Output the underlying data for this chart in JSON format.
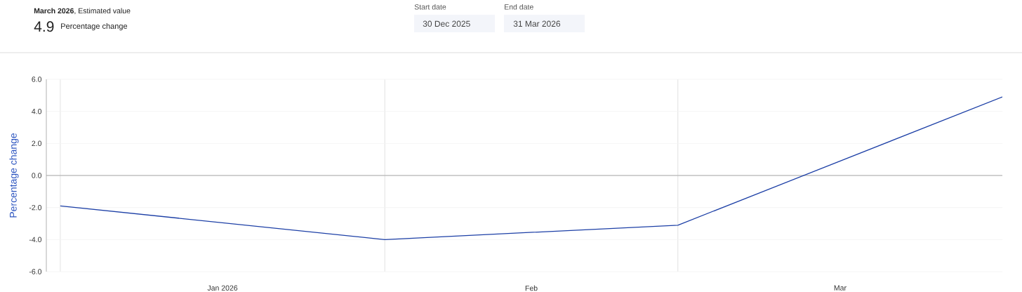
{
  "chart_data": {
    "type": "line",
    "title": "**March 2026**, Estimated value",
    "ylabel": "Percentage change",
    "annotations": [
      "4.9",
      "Percentage change",
      "Start date",
      "30 Dec 2025",
      "End date",
      "31 Mar 2026"
    ],
    "x": [
      "2026-01-01",
      "2026-02-01",
      "2026-03-01",
      "2026-04-01"
    ],
    "series": [
      {
        "color": "#1c3fa6",
        "values": [
          -1.9,
          -4.0,
          -3.1,
          4.9
        ]
      }
    ],
    "xlim": [
      "2025-12-30T16:00",
      "2026-04-01"
    ],
    "xticks": [
      {
        "value": "2026-01-01",
        "label": null
      },
      {
        "value": "2026-01-16T12:00",
        "label": "Jan 2026"
      },
      {
        "value": "2026-02-01",
        "label": null
      },
      {
        "value": "2026-02-15",
        "label": "Feb"
      },
      {
        "value": "2026-03-01",
        "label": null
      },
      {
        "value": "2026-03-16T12:00",
        "label": "Mar"
      }
    ],
    "ylim": [
      -6,
      6
    ],
    "yticks": [
      {
        "value": -6,
        "label": "-6.0"
      },
      {
        "value": -4,
        "label": "-4.0"
      },
      {
        "value": -2,
        "label": "-2.0"
      },
      {
        "value": 0,
        "label": "0.0"
      },
      {
        "value": 2,
        "label": "2.0"
      },
      {
        "value": 4,
        "label": "4.0"
      },
      {
        "value": 6,
        "label": "6.0"
      }
    ],
    "grid": true,
    "line_style": "solid",
    "ref_lines": [
      {
        "axis": "y",
        "value": 0,
        "color": "#a6a6a6"
      }
    ]
  }
}
